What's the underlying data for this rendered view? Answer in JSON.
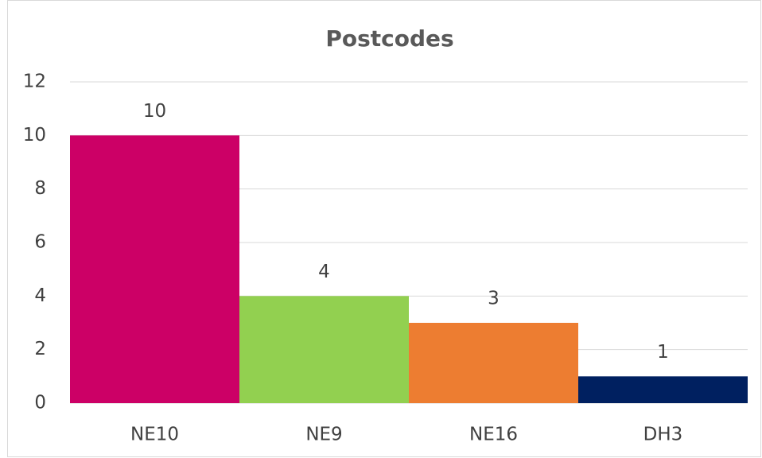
{
  "chart_data": {
    "type": "bar",
    "title": "Postcodes",
    "categories": [
      "NE10",
      "NE9",
      "NE16",
      "DH3"
    ],
    "values": [
      10,
      4,
      3,
      1
    ],
    "colors": [
      "#cc0066",
      "#92d050",
      "#ed7d31",
      "#002060"
    ],
    "ylim": [
      0,
      12
    ],
    "yticks": [
      0,
      2,
      4,
      6,
      8,
      10,
      12
    ],
    "grid": true,
    "data_labels": true
  }
}
